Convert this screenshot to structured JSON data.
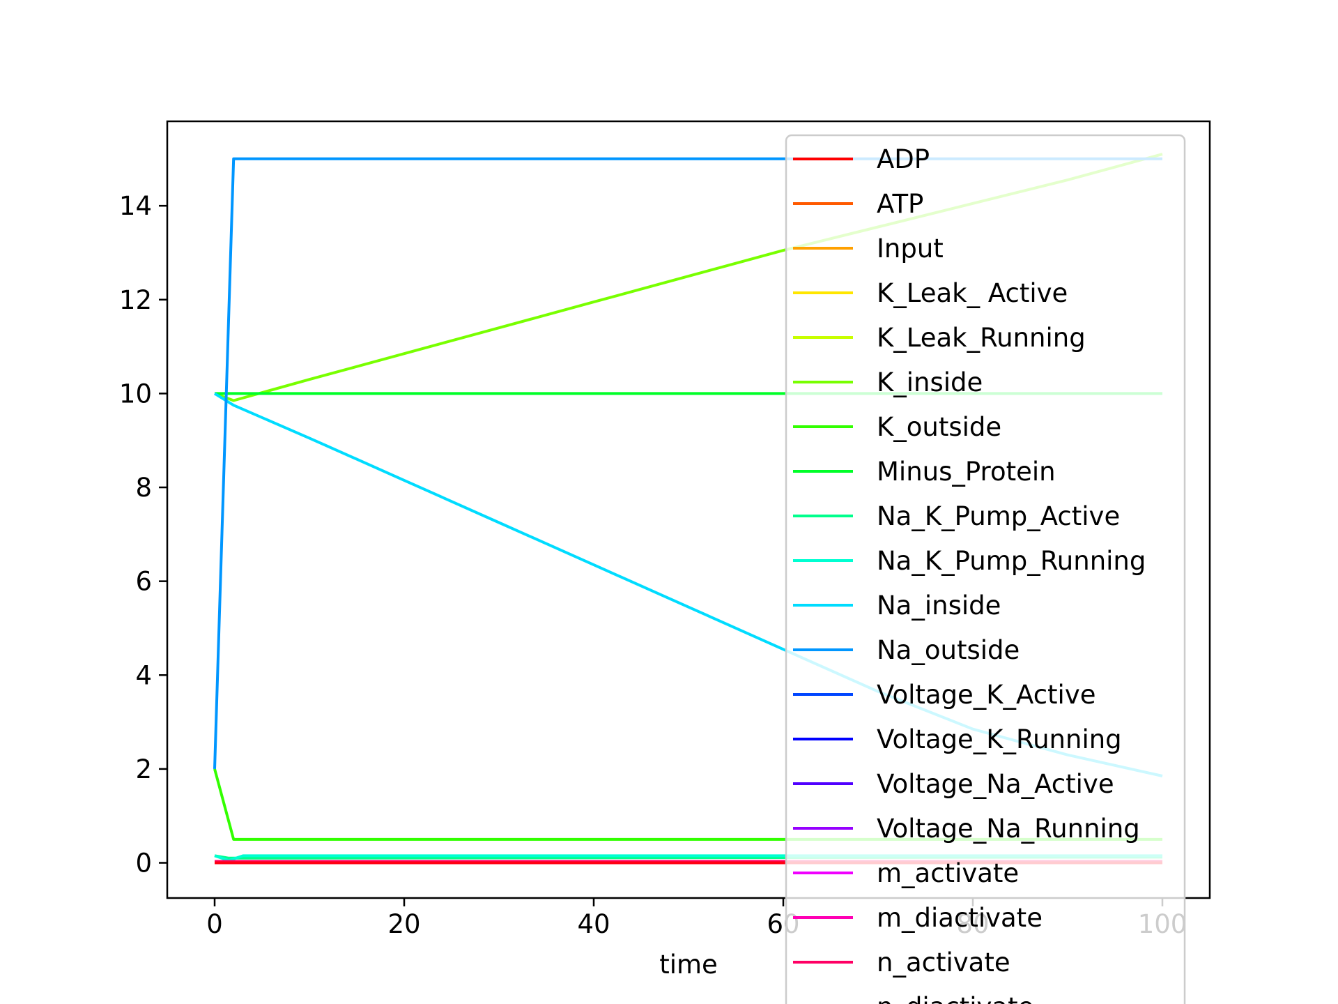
{
  "chart_data": {
    "type": "line",
    "title": "",
    "xlabel": "time",
    "ylabel": "",
    "xlim": [
      -5,
      105
    ],
    "ylim": [
      -0.75,
      15.8
    ],
    "xticks": [
      0,
      20,
      40,
      60,
      80,
      100
    ],
    "yticks": [
      0,
      2,
      4,
      6,
      8,
      10,
      12,
      14
    ],
    "xtick_labels": [
      "0",
      "20",
      "40",
      "60",
      "80",
      "100"
    ],
    "ytick_labels": [
      "0",
      "2",
      "4",
      "6",
      "8",
      "10",
      "12",
      "14"
    ],
    "grid": false,
    "legend_position": "top-right",
    "series": [
      {
        "name": "ADP",
        "color": "#ff0000",
        "x": [
          0,
          100
        ],
        "y": [
          0.0,
          0.0
        ]
      },
      {
        "name": "ATP",
        "color": "#ff5a00",
        "x": [
          0,
          100
        ],
        "y": [
          0.02,
          0.02
        ]
      },
      {
        "name": "Input",
        "color": "#ffa000",
        "x": [
          0,
          100
        ],
        "y": [
          0.0,
          0.0
        ]
      },
      {
        "name": "K_Leak_ Active",
        "color": "#ffe600",
        "x": [
          0,
          100
        ],
        "y": [
          0.0,
          0.0
        ]
      },
      {
        "name": "K_Leak_Running",
        "color": "#c8ff00",
        "x": [
          0,
          100
        ],
        "y": [
          0.0,
          0.0
        ]
      },
      {
        "name": "K_inside",
        "color": "#78ff00",
        "x": [
          0,
          2,
          10,
          20,
          30,
          40,
          50,
          60,
          70,
          80,
          90,
          100
        ],
        "y": [
          10.0,
          9.85,
          10.3,
          10.85,
          11.4,
          11.95,
          12.5,
          13.05,
          13.55,
          14.05,
          14.55,
          15.1
        ]
      },
      {
        "name": "K_outside",
        "color": "#32ff00",
        "x": [
          0,
          2,
          100
        ],
        "y": [
          2.0,
          0.5,
          0.5
        ]
      },
      {
        "name": "Minus_Protein",
        "color": "#00ff28",
        "x": [
          0,
          100
        ],
        "y": [
          10.0,
          10.0
        ]
      },
      {
        "name": "Na_K_Pump_Active",
        "color": "#00ff8c",
        "x": [
          0,
          1.5,
          100
        ],
        "y": [
          0.15,
          0.1,
          0.12
        ]
      },
      {
        "name": "Na_K_Pump_Running",
        "color": "#00ffd2",
        "x": [
          0,
          1.5,
          3,
          100
        ],
        "y": [
          0.15,
          0.05,
          0.15,
          0.15
        ]
      },
      {
        "name": "Na_inside",
        "color": "#00dcff",
        "x": [
          0,
          2,
          10,
          20,
          30,
          40,
          50,
          60,
          70,
          80,
          90,
          100
        ],
        "y": [
          10.0,
          9.75,
          9.05,
          8.15,
          7.25,
          6.35,
          5.45,
          4.55,
          3.65,
          2.85,
          2.3,
          1.85
        ]
      },
      {
        "name": "Na_outside",
        "color": "#0096ff",
        "x": [
          0,
          2,
          100
        ],
        "y": [
          2.0,
          15.0,
          15.0
        ]
      },
      {
        "name": "Voltage_K_Active",
        "color": "#0046ff",
        "x": [
          0,
          100
        ],
        "y": [
          0.0,
          0.0
        ]
      },
      {
        "name": "Voltage_K_Running",
        "color": "#0000ff",
        "x": [
          0,
          100
        ],
        "y": [
          0.0,
          0.0
        ]
      },
      {
        "name": "Voltage_Na_Active",
        "color": "#5000ff",
        "x": [
          0,
          100
        ],
        "y": [
          0.0,
          0.0
        ]
      },
      {
        "name": "Voltage_Na_Running",
        "color": "#9600ff",
        "x": [
          0,
          100
        ],
        "y": [
          0.0,
          0.0
        ]
      },
      {
        "name": "m_activate",
        "color": "#f000ff",
        "x": [
          0,
          100
        ],
        "y": [
          0.0,
          0.0
        ]
      },
      {
        "name": "m_diactivate",
        "color": "#ff00b4",
        "x": [
          0,
          100
        ],
        "y": [
          0.0,
          0.0
        ]
      },
      {
        "name": "n_activate",
        "color": "#ff0064",
        "x": [
          0,
          100
        ],
        "y": [
          0.03,
          0.03
        ]
      },
      {
        "name": "n_diactivate",
        "color": "#ff0014",
        "x": [
          0,
          100
        ],
        "y": [
          0.0,
          0.0
        ]
      }
    ]
  }
}
